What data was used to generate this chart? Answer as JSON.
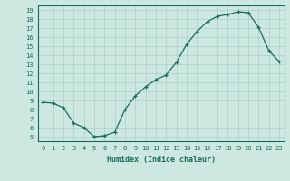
{
  "x": [
    0,
    1,
    2,
    3,
    4,
    5,
    6,
    7,
    8,
    9,
    10,
    11,
    12,
    13,
    14,
    15,
    16,
    17,
    18,
    19,
    20,
    21,
    22,
    23
  ],
  "y": [
    8.8,
    8.7,
    8.2,
    6.5,
    6.0,
    5.0,
    5.1,
    5.5,
    8.0,
    9.5,
    10.5,
    11.3,
    11.8,
    13.2,
    15.2,
    16.6,
    17.7,
    18.3,
    18.5,
    18.8,
    18.7,
    17.1,
    14.5,
    13.3
  ],
  "xlim": [
    -0.5,
    23.5
  ],
  "ylim": [
    4.5,
    19.5
  ],
  "xticks": [
    0,
    1,
    2,
    3,
    4,
    5,
    6,
    7,
    8,
    9,
    10,
    11,
    12,
    13,
    14,
    15,
    16,
    17,
    18,
    19,
    20,
    21,
    22,
    23
  ],
  "yticks": [
    5,
    6,
    7,
    8,
    9,
    10,
    11,
    12,
    13,
    14,
    15,
    16,
    17,
    18,
    19
  ],
  "xlabel": "Humidex (Indice chaleur)",
  "line_color": "#1a6b5e",
  "marker": "+",
  "bg_color": "#cce8e0",
  "grid_color": "#aacfc8",
  "axis_bg": "#cce8e0",
  "spine_color": "#1a6b5e",
  "tick_color": "#1a6b5e",
  "label_color": "#1a6b5e"
}
